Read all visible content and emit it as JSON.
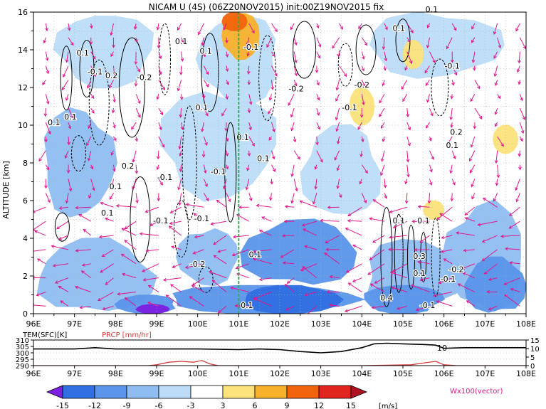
{
  "title": "NICAM U (4S)  (06Z20NOV2015)  init:00Z19NOV2015  fix",
  "credit_text": "Wx100(vector)",
  "colors": {
    "accent_vector": "#e0168c",
    "temperature_line": "#000000",
    "precip_line": "#d43c3c",
    "wind_neg_15": "#7b1fe0",
    "wind_neg_12": "#2f6fe0",
    "wind_neg_9": "#5a95ea",
    "wind_neg_6": "#8fbdf1",
    "wind_neg_3": "#bcdcf7",
    "wind_pos_3": "#fbe27a",
    "wind_pos_6": "#f8b12a",
    "wind_pos_9": "#f0640c",
    "wind_pos_12": "#e0251f",
    "wind_pos_15": "#b01020",
    "marker_line": "#2bb24c"
  },
  "chart_data": [
    {
      "type": "heatmap",
      "title": "NICAM U (4S)  (06Z20NOV2015)  init:00Z19NOV2015  fix",
      "xlabel": "",
      "ylabel": "ALTITUDE [km]",
      "x_ticks": [
        "96E",
        "97E",
        "98E",
        "99E",
        "100E",
        "101E",
        "102E",
        "103E",
        "104E",
        "105E",
        "106E",
        "107E",
        "108E"
      ],
      "x_range": [
        96,
        108
      ],
      "y_ticks": [
        "0",
        "2",
        "4",
        "6",
        "8",
        "10",
        "12",
        "14",
        "16"
      ],
      "y_range": [
        0,
        16
      ],
      "grid": true,
      "marker_longitude": 101.0,
      "colorbar": {
        "levels": [
          -15,
          -12,
          -9,
          -6,
          -3,
          3,
          6,
          9,
          12,
          15
        ],
        "tick_labels": [
          "-15",
          "-12",
          "-9",
          "-6",
          "-3",
          "3",
          "6",
          "9",
          "12",
          "15"
        ],
        "unit": "[m/s]"
      },
      "wind_regions": [
        {
          "lon": [
            96.0,
            99.0
          ],
          "alt": [
            0.0,
            4.0
          ],
          "value": -6
        },
        {
          "lon": [
            96.2,
            98.0
          ],
          "alt": [
            5.0,
            11.0
          ],
          "value": -6
        },
        {
          "lon": [
            96.5,
            99.0
          ],
          "alt": [
            12.0,
            16.0
          ],
          "value": -3
        },
        {
          "lon": [
            98.0,
            99.5
          ],
          "alt": [
            0.0,
            1.0
          ],
          "value": -9
        },
        {
          "lon": [
            98.5,
            99.3
          ],
          "alt": [
            0.0,
            0.5
          ],
          "value": -15
        },
        {
          "lon": [
            99.0,
            104.0
          ],
          "alt": [
            0.0,
            1.5
          ],
          "value": -9
        },
        {
          "lon": [
            99.5,
            101.0
          ],
          "alt": [
            1.5,
            4.5
          ],
          "value": -6
        },
        {
          "lon": [
            101.0,
            104.0
          ],
          "alt": [
            1.5,
            5.0
          ],
          "value": -9
        },
        {
          "lon": [
            101.0,
            103.5
          ],
          "alt": [
            0.0,
            1.5
          ],
          "value": -12
        },
        {
          "lon": [
            99.0,
            102.0
          ],
          "alt": [
            6.0,
            12.0
          ],
          "value": -3
        },
        {
          "lon": [
            100.0,
            102.0
          ],
          "alt": [
            11.0,
            16.0
          ],
          "value": -3
        },
        {
          "lon": [
            102.5,
            104.5
          ],
          "alt": [
            5.0,
            10.0
          ],
          "value": -3
        },
        {
          "lon": [
            104.0,
            106.5
          ],
          "alt": [
            0.0,
            4.0
          ],
          "value": -6
        },
        {
          "lon": [
            104.0,
            106.0
          ],
          "alt": [
            0.0,
            1.5
          ],
          "value": -9
        },
        {
          "lon": [
            106.0,
            108.0
          ],
          "alt": [
            0.0,
            6.0
          ],
          "value": -6
        },
        {
          "lon": [
            106.5,
            108.0
          ],
          "alt": [
            0.0,
            3.0
          ],
          "value": -9
        },
        {
          "lon": [
            104.0,
            107.5
          ],
          "alt": [
            12.5,
            16.0
          ],
          "value": -3
        },
        {
          "lon": [
            100.6,
            101.5
          ],
          "alt": [
            13.5,
            16.0
          ],
          "value": 6
        },
        {
          "lon": [
            100.6,
            101.2
          ],
          "alt": [
            15.0,
            16.0
          ],
          "value": 9
        },
        {
          "lon": [
            103.7,
            104.3
          ],
          "alt": [
            10.0,
            12.0
          ],
          "value": 3
        },
        {
          "lon": [
            105.0,
            105.5
          ],
          "alt": [
            13.0,
            14.5
          ],
          "value": 3
        },
        {
          "lon": [
            107.2,
            107.8
          ],
          "alt": [
            8.5,
            10.0
          ],
          "value": 3
        },
        {
          "lon": [
            105.5,
            106.0
          ],
          "alt": [
            5.0,
            6.0
          ],
          "value": 3
        }
      ],
      "contour_labels": [
        "0.1",
        "-0.1",
        "0.2",
        "-0.2",
        "0.3",
        "0.4"
      ]
    },
    {
      "type": "line",
      "title": "",
      "x_range": [
        96,
        108
      ],
      "x_ticks": [
        "96E",
        "97E",
        "98E",
        "99E",
        "100E",
        "101E",
        "102E",
        "103E",
        "104E",
        "105E",
        "106E",
        "107E",
        "108E"
      ],
      "left_axis": {
        "label": "TEM(SFC)[K]",
        "ticks": [
          "290",
          "295",
          "300",
          "305",
          "310"
        ],
        "range": [
          290,
          310
        ]
      },
      "right_axis": {
        "label": "PRCP [mm/hr]",
        "ticks": [
          "0",
          "5",
          "10",
          "15"
        ],
        "range": [
          0,
          15
        ]
      },
      "series": [
        {
          "name": "TEM(SFC)[K]",
          "axis": "left",
          "x": [
            96.0,
            97.0,
            97.5,
            98.0,
            99.0,
            100.0,
            101.0,
            101.5,
            102.0,
            102.5,
            103.0,
            103.5,
            104.0,
            104.3,
            104.6,
            105.0,
            105.5,
            105.8,
            106.0,
            106.5,
            107.0,
            108.0
          ],
          "y": [
            303,
            303,
            304,
            303,
            303,
            303,
            302.5,
            303,
            302.5,
            301,
            300,
            301,
            304,
            307,
            307.5,
            307,
            306.5,
            306,
            303.5,
            304,
            304,
            304
          ]
        },
        {
          "name": "PRCP [mm/hr]",
          "axis": "right",
          "x": [
            96.0,
            98.8,
            99.0,
            99.3,
            99.6,
            99.9,
            100.1,
            100.3,
            100.5,
            101.0,
            104.0,
            105.2,
            105.5,
            105.8,
            106.0,
            106.3,
            108.0
          ],
          "y": [
            0,
            0,
            0.5,
            2,
            2.5,
            2,
            3,
            1,
            0,
            0,
            0,
            0.5,
            1.5,
            2.5,
            0.5,
            0,
            0
          ]
        }
      ],
      "annotations": [
        "10"
      ]
    }
  ]
}
